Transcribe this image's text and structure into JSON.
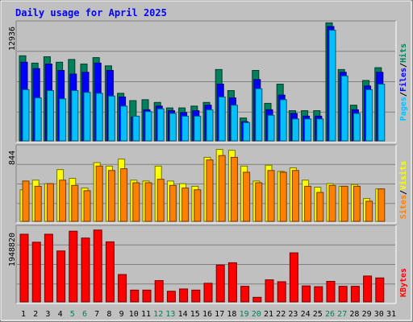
{
  "title": "Daily usage for April 2025",
  "colors": {
    "background": "#c0c0c0",
    "title": "#0000ff",
    "hits": "#00805c",
    "files": "#0000ff",
    "pages": "#00c0ff",
    "visits": "#ffff00",
    "sites": "#ff8000",
    "kbytes": "#ff0000",
    "weekday_label": "#000000",
    "weekend_label": "#00805c",
    "slash": "#000000"
  },
  "chart_data": [
    {
      "type": "bar",
      "panel": "hits-files-pages",
      "ymax_label": "12936",
      "ylim": [
        0,
        12936
      ],
      "legend": [
        "Pages",
        "Files",
        "Hits"
      ],
      "categories": [
        "1",
        "2",
        "3",
        "4",
        "5",
        "6",
        "7",
        "8",
        "9",
        "10",
        "11",
        "12",
        "13",
        "14",
        "15",
        "16",
        "17",
        "18",
        "19",
        "20",
        "21",
        "22",
        "23",
        "24",
        "25",
        "26",
        "27",
        "28",
        "29",
        "30",
        "31"
      ],
      "weekend_days": [
        5,
        6,
        12,
        13,
        19,
        20,
        26,
        27
      ],
      "series": [
        {
          "name": "Hits",
          "values": [
            9300,
            8500,
            9200,
            8600,
            8900,
            8400,
            9100,
            8200,
            5200,
            4400,
            4500,
            4200,
            3600,
            3600,
            3800,
            4200,
            7800,
            5500,
            2500,
            7700,
            4100,
            6200,
            3300,
            3300,
            3300,
            12900,
            7800,
            3900,
            6600,
            8000,
            0
          ]
        },
        {
          "name": "Files",
          "values": [
            8600,
            7900,
            8400,
            7700,
            7300,
            7500,
            8500,
            7700,
            4800,
            2600,
            3400,
            3800,
            3300,
            3100,
            3300,
            3900,
            6200,
            4700,
            2100,
            6700,
            3400,
            5000,
            3000,
            2700,
            2700,
            12500,
            7500,
            3400,
            6000,
            7500,
            0
          ]
        },
        {
          "name": "Pages",
          "values": [
            5600,
            4700,
            5500,
            4600,
            5500,
            5300,
            5200,
            4900,
            3800,
            2700,
            3200,
            3500,
            3000,
            2700,
            2700,
            3400,
            4800,
            3900,
            2000,
            5700,
            2800,
            4500,
            2400,
            2400,
            2400,
            12100,
            7100,
            3000,
            5600,
            6200,
            0
          ]
        }
      ]
    },
    {
      "type": "bar",
      "panel": "visits-sites",
      "ymax_label": "844",
      "ylim": [
        0,
        844
      ],
      "legend": [
        "Sites",
        "Visits"
      ],
      "categories": [
        "1",
        "2",
        "3",
        "4",
        "5",
        "6",
        "7",
        "8",
        "9",
        "10",
        "11",
        "12",
        "13",
        "14",
        "15",
        "16",
        "17",
        "18",
        "19",
        "20",
        "21",
        "22",
        "23",
        "24",
        "25",
        "26",
        "27",
        "28",
        "29",
        "30",
        "31"
      ],
      "series": [
        {
          "name": "Visits",
          "values": [
            360,
            470,
            430,
            590,
            490,
            380,
            670,
            630,
            710,
            470,
            460,
            630,
            460,
            430,
            400,
            730,
            820,
            810,
            630,
            460,
            640,
            570,
            610,
            470,
            390,
            430,
            400,
            420,
            260,
            370,
            0
          ]
        },
        {
          "name": "Sites",
          "values": [
            460,
            400,
            430,
            470,
            410,
            350,
            630,
            580,
            600,
            440,
            440,
            480,
            410,
            380,
            360,
            700,
            750,
            730,
            560,
            440,
            580,
            560,
            580,
            400,
            330,
            410,
            400,
            400,
            230,
            370,
            0
          ]
        }
      ]
    },
    {
      "type": "bar",
      "panel": "kbytes",
      "ymax_label": "1948820",
      "ylim": [
        0,
        1948820
      ],
      "legend": [
        "KBytes"
      ],
      "categories": [
        "1",
        "2",
        "3",
        "4",
        "5",
        "6",
        "7",
        "8",
        "9",
        "10",
        "11",
        "12",
        "13",
        "14",
        "15",
        "16",
        "17",
        "18",
        "19",
        "20",
        "21",
        "22",
        "23",
        "24",
        "25",
        "26",
        "27",
        "28",
        "29",
        "30",
        "31"
      ],
      "series": [
        {
          "name": "KBytes",
          "values": [
            1780000,
            1570000,
            1780000,
            1340000,
            1860000,
            1680000,
            1890000,
            1580000,
            720000,
            310000,
            310000,
            560000,
            280000,
            340000,
            310000,
            490000,
            970000,
            1030000,
            410000,
            120000,
            580000,
            530000,
            1290000,
            420000,
            400000,
            540000,
            410000,
            410000,
            680000,
            630000,
            0
          ]
        }
      ]
    }
  ]
}
